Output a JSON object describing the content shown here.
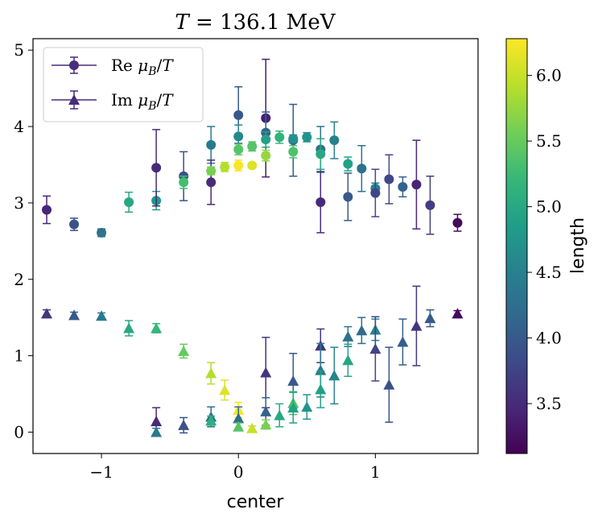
{
  "title": "T = 136.1 MeV",
  "chart_data": {
    "type": "scatter",
    "title": "T = 136.1 MeV",
    "xlabel": "center",
    "ylabel": "",
    "xlim": [
      -1.5,
      1.75
    ],
    "ylim": [
      -0.28,
      5.15
    ],
    "xticks": [
      -1,
      0,
      1
    ],
    "yticks": [
      0,
      1,
      2,
      3,
      4,
      5
    ],
    "legend": {
      "position": "upper-left",
      "entries": [
        "Re μ_B/T",
        "Im μ_B/T"
      ]
    },
    "colorbar": {
      "label": "length",
      "range": [
        3.12,
        6.28
      ],
      "ticks": [
        3.5,
        4.0,
        4.5,
        5.0,
        5.5,
        6.0
      ],
      "tick_labels": [
        "3.5",
        "4.0",
        "4.5",
        "5.0",
        "5.5",
        "6.0"
      ],
      "colormap": "viridis"
    },
    "series": [
      {
        "name": "Re μ_B/T",
        "marker": "circle",
        "points": [
          {
            "x": -1.4,
            "y": 2.91,
            "err": 0.18,
            "c": 3.45
          },
          {
            "x": -1.2,
            "y": 2.72,
            "err": 0.08,
            "c": 3.9
          },
          {
            "x": -1.0,
            "y": 2.61,
            "err": 0.05,
            "c": 4.3
          },
          {
            "x": -0.8,
            "y": 3.01,
            "err": 0.13,
            "c": 5.0
          },
          {
            "x": -0.6,
            "y": 3.03,
            "err": 0.12,
            "c": 4.8
          },
          {
            "x": -0.6,
            "y": 3.46,
            "err": 0.5,
            "c": 3.5
          },
          {
            "x": -0.4,
            "y": 3.35,
            "err": 0.32,
            "c": 3.9
          },
          {
            "x": -0.4,
            "y": 3.27,
            "err": 0.08,
            "c": 5.3
          },
          {
            "x": -0.2,
            "y": 3.76,
            "err": 0.24,
            "c": 4.4
          },
          {
            "x": -0.2,
            "y": 3.27,
            "err": 0.29,
            "c": 3.5
          },
          {
            "x": -0.2,
            "y": 3.42,
            "err": 0.05,
            "c": 5.6
          },
          {
            "x": -0.1,
            "y": 3.47,
            "err": 0.06,
            "c": 5.9
          },
          {
            "x": 0.0,
            "y": 4.15,
            "err": 0.37,
            "c": 4.0
          },
          {
            "x": 0.0,
            "y": 3.87,
            "err": 0.15,
            "c": 4.6
          },
          {
            "x": 0.0,
            "y": 3.7,
            "err": 0.07,
            "c": 5.4
          },
          {
            "x": 0.0,
            "y": 3.49,
            "err": 0.07,
            "c": 6.25
          },
          {
            "x": 0.1,
            "y": 3.74,
            "err": 0.06,
            "c": 5.4
          },
          {
            "x": 0.1,
            "y": 3.49,
            "err": 0.03,
            "c": 6.1
          },
          {
            "x": 0.2,
            "y": 4.11,
            "err": 0.77,
            "c": 3.4
          },
          {
            "x": 0.2,
            "y": 3.92,
            "err": 0.27,
            "c": 4.1
          },
          {
            "x": 0.2,
            "y": 3.83,
            "err": 0.1,
            "c": 4.9
          },
          {
            "x": 0.2,
            "y": 3.62,
            "err": 0.07,
            "c": 5.75
          },
          {
            "x": 0.3,
            "y": 3.86,
            "err": 0.08,
            "c": 5.15
          },
          {
            "x": 0.4,
            "y": 3.82,
            "err": 0.47,
            "c": 4.0
          },
          {
            "x": 0.4,
            "y": 3.84,
            "err": 0.05,
            "c": 4.7
          },
          {
            "x": 0.4,
            "y": 3.67,
            "err": 0.08,
            "c": 5.35
          },
          {
            "x": 0.5,
            "y": 3.86,
            "err": 0.06,
            "c": 4.75
          },
          {
            "x": 0.6,
            "y": 3.7,
            "err": 0.3,
            "c": 4.3
          },
          {
            "x": 0.6,
            "y": 3.64,
            "err": 0.2,
            "c": 5.0
          },
          {
            "x": 0.6,
            "y": 3.01,
            "err": 0.4,
            "c": 3.5
          },
          {
            "x": 0.7,
            "y": 3.82,
            "err": 0.24,
            "c": 4.5
          },
          {
            "x": 0.8,
            "y": 3.51,
            "err": 0.09,
            "c": 4.9
          },
          {
            "x": 0.8,
            "y": 3.08,
            "err": 0.31,
            "c": 4.0
          },
          {
            "x": 0.9,
            "y": 3.45,
            "err": 0.3,
            "c": 4.3
          },
          {
            "x": 1.0,
            "y": 3.19,
            "err": 0.07,
            "c": 4.5
          },
          {
            "x": 1.0,
            "y": 3.13,
            "err": 0.31,
            "c": 3.8
          },
          {
            "x": 1.1,
            "y": 3.31,
            "err": 0.32,
            "c": 3.8
          },
          {
            "x": 1.2,
            "y": 3.21,
            "err": 0.13,
            "c": 4.1
          },
          {
            "x": 1.3,
            "y": 3.24,
            "err": 0.58,
            "c": 3.45
          },
          {
            "x": 1.4,
            "y": 2.97,
            "err": 0.38,
            "c": 3.7
          },
          {
            "x": 1.6,
            "y": 2.74,
            "err": 0.11,
            "c": 3.2
          }
        ]
      },
      {
        "name": "Im μ_B/T",
        "marker": "triangle",
        "points": [
          {
            "x": -1.4,
            "y": 1.55,
            "err": 0.05,
            "c": 3.6
          },
          {
            "x": -1.2,
            "y": 1.53,
            "err": 0.04,
            "c": 4.0
          },
          {
            "x": -1.0,
            "y": 1.52,
            "err": 0.04,
            "c": 4.4
          },
          {
            "x": -0.8,
            "y": 1.36,
            "err": 0.1,
            "c": 5.0
          },
          {
            "x": -0.6,
            "y": 1.36,
            "err": 0.06,
            "c": 5.2
          },
          {
            "x": -0.6,
            "y": 0.14,
            "err": 0.18,
            "c": 3.5
          },
          {
            "x": -0.6,
            "y": 0.0,
            "err": 0.05,
            "c": 4.4
          },
          {
            "x": -0.4,
            "y": 1.06,
            "err": 0.09,
            "c": 5.5
          },
          {
            "x": -0.4,
            "y": 0.09,
            "err": 0.1,
            "c": 3.9
          },
          {
            "x": -0.2,
            "y": 0.77,
            "err": 0.14,
            "c": 5.9
          },
          {
            "x": -0.2,
            "y": 0.2,
            "err": 0.13,
            "c": 4.3
          },
          {
            "x": -0.2,
            "y": 0.15,
            "err": 0.06,
            "c": 5.1
          },
          {
            "x": -0.1,
            "y": 0.55,
            "err": 0.13,
            "c": 6.1
          },
          {
            "x": 0.0,
            "y": 0.29,
            "err": 0.1,
            "c": 6.25
          },
          {
            "x": 0.0,
            "y": 0.18,
            "err": 0.15,
            "c": 4.2
          },
          {
            "x": 0.0,
            "y": 0.07,
            "err": 0.05,
            "c": 5.4
          },
          {
            "x": 0.1,
            "y": 0.05,
            "err": 0.03,
            "c": 6.0
          },
          {
            "x": 0.2,
            "y": 0.78,
            "err": 0.46,
            "c": 3.6
          },
          {
            "x": 0.2,
            "y": 0.27,
            "err": 0.18,
            "c": 4.1
          },
          {
            "x": 0.2,
            "y": 0.1,
            "err": 0.06,
            "c": 5.6
          },
          {
            "x": 0.3,
            "y": 0.22,
            "err": 0.15,
            "c": 5.0
          },
          {
            "x": 0.4,
            "y": 0.67,
            "err": 0.36,
            "c": 4.0
          },
          {
            "x": 0.4,
            "y": 0.38,
            "err": 0.15,
            "c": 5.35
          },
          {
            "x": 0.4,
            "y": 0.32,
            "err": 0.2,
            "c": 4.9
          },
          {
            "x": 0.5,
            "y": 0.33,
            "err": 0.16,
            "c": 4.75
          },
          {
            "x": 0.6,
            "y": 1.13,
            "err": 0.22,
            "c": 3.6
          },
          {
            "x": 0.6,
            "y": 0.81,
            "err": 0.35,
            "c": 4.4
          },
          {
            "x": 0.6,
            "y": 0.56,
            "err": 0.24,
            "c": 4.9
          },
          {
            "x": 0.7,
            "y": 0.74,
            "err": 0.37,
            "c": 4.55
          },
          {
            "x": 0.8,
            "y": 1.25,
            "err": 0.13,
            "c": 4.3
          },
          {
            "x": 0.8,
            "y": 0.94,
            "err": 0.21,
            "c": 4.95
          },
          {
            "x": 0.9,
            "y": 1.33,
            "err": 0.17,
            "c": 4.2
          },
          {
            "x": 1.0,
            "y": 1.34,
            "err": 0.14,
            "c": 4.5
          },
          {
            "x": 1.0,
            "y": 1.09,
            "err": 0.42,
            "c": 3.75
          },
          {
            "x": 1.1,
            "y": 0.62,
            "err": 0.49,
            "c": 3.9
          },
          {
            "x": 1.2,
            "y": 1.18,
            "err": 0.3,
            "c": 4.05
          },
          {
            "x": 1.3,
            "y": 1.39,
            "err": 0.52,
            "c": 3.6
          },
          {
            "x": 1.4,
            "y": 1.49,
            "err": 0.11,
            "c": 4.0
          },
          {
            "x": 1.6,
            "y": 1.55,
            "err": 0.04,
            "c": 3.2
          }
        ]
      }
    ]
  }
}
